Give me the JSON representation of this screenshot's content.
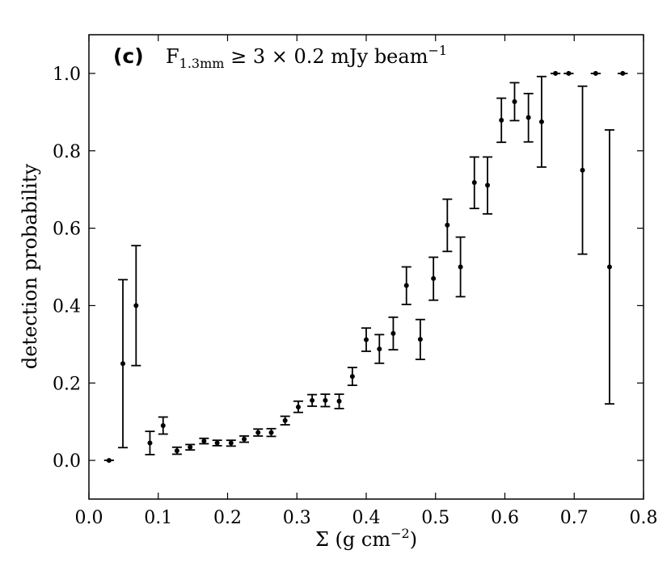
{
  "chart_data": {
    "type": "scatter",
    "annotation": {
      "panel_label": "(c)",
      "formula_main": "F",
      "formula_sub": "1.3mm",
      "formula_rest": " ≥ 3 × 0.2 mJy beam",
      "formula_sup": "−1"
    },
    "xlabel": "Σ (g cm",
    "xlabel_sup": "−2",
    "xlabel_end": ")",
    "ylabel": "detection probability",
    "xlim": [
      0.0,
      0.8
    ],
    "ylim": [
      -0.1,
      1.1
    ],
    "xticks": [
      "0.0",
      "0.1",
      "0.2",
      "0.3",
      "0.4",
      "0.5",
      "0.6",
      "0.7",
      "0.8"
    ],
    "yticks": [
      "0.0",
      "0.2",
      "0.4",
      "0.6",
      "0.8",
      "1.0"
    ],
    "grid": false,
    "legend": "none",
    "points": [
      {
        "x": 0.029,
        "y": 0.0,
        "ylow": 0.0,
        "yhigh": 0.0
      },
      {
        "x": 0.049,
        "y": 0.25,
        "ylow": 0.033,
        "yhigh": 0.467
      },
      {
        "x": 0.068,
        "y": 0.4,
        "ylow": 0.245,
        "yhigh": 0.555
      },
      {
        "x": 0.088,
        "y": 0.045,
        "ylow": 0.015,
        "yhigh": 0.075
      },
      {
        "x": 0.107,
        "y": 0.09,
        "ylow": 0.068,
        "yhigh": 0.112
      },
      {
        "x": 0.127,
        "y": 0.025,
        "ylow": 0.016,
        "yhigh": 0.034
      },
      {
        "x": 0.146,
        "y": 0.034,
        "ylow": 0.027,
        "yhigh": 0.041
      },
      {
        "x": 0.166,
        "y": 0.05,
        "ylow": 0.043,
        "yhigh": 0.057
      },
      {
        "x": 0.185,
        "y": 0.045,
        "ylow": 0.038,
        "yhigh": 0.052
      },
      {
        "x": 0.205,
        "y": 0.045,
        "ylow": 0.037,
        "yhigh": 0.052
      },
      {
        "x": 0.224,
        "y": 0.055,
        "ylow": 0.047,
        "yhigh": 0.063
      },
      {
        "x": 0.244,
        "y": 0.072,
        "ylow": 0.063,
        "yhigh": 0.081
      },
      {
        "x": 0.263,
        "y": 0.072,
        "ylow": 0.062,
        "yhigh": 0.082
      },
      {
        "x": 0.283,
        "y": 0.103,
        "ylow": 0.092,
        "yhigh": 0.114
      },
      {
        "x": 0.302,
        "y": 0.138,
        "ylow": 0.124,
        "yhigh": 0.153
      },
      {
        "x": 0.322,
        "y": 0.155,
        "ylow": 0.14,
        "yhigh": 0.17
      },
      {
        "x": 0.341,
        "y": 0.155,
        "ylow": 0.139,
        "yhigh": 0.171
      },
      {
        "x": 0.361,
        "y": 0.153,
        "ylow": 0.134,
        "yhigh": 0.171
      },
      {
        "x": 0.38,
        "y": 0.217,
        "ylow": 0.194,
        "yhigh": 0.24
      },
      {
        "x": 0.4,
        "y": 0.312,
        "ylow": 0.282,
        "yhigh": 0.342
      },
      {
        "x": 0.419,
        "y": 0.288,
        "ylow": 0.251,
        "yhigh": 0.325
      },
      {
        "x": 0.439,
        "y": 0.328,
        "ylow": 0.286,
        "yhigh": 0.37
      },
      {
        "x": 0.458,
        "y": 0.452,
        "ylow": 0.403,
        "yhigh": 0.5
      },
      {
        "x": 0.478,
        "y": 0.313,
        "ylow": 0.261,
        "yhigh": 0.364
      },
      {
        "x": 0.497,
        "y": 0.47,
        "ylow": 0.414,
        "yhigh": 0.525
      },
      {
        "x": 0.517,
        "y": 0.608,
        "ylow": 0.54,
        "yhigh": 0.675
      },
      {
        "x": 0.536,
        "y": 0.5,
        "ylow": 0.423,
        "yhigh": 0.577
      },
      {
        "x": 0.556,
        "y": 0.718,
        "ylow": 0.651,
        "yhigh": 0.784
      },
      {
        "x": 0.575,
        "y": 0.711,
        "ylow": 0.637,
        "yhigh": 0.784
      },
      {
        "x": 0.595,
        "y": 0.879,
        "ylow": 0.822,
        "yhigh": 0.936
      },
      {
        "x": 0.614,
        "y": 0.927,
        "ylow": 0.878,
        "yhigh": 0.976
      },
      {
        "x": 0.634,
        "y": 0.886,
        "ylow": 0.823,
        "yhigh": 0.948
      },
      {
        "x": 0.653,
        "y": 0.875,
        "ylow": 0.758,
        "yhigh": 0.992
      },
      {
        "x": 0.673,
        "y": 1.0,
        "ylow": 1.0,
        "yhigh": 1.0
      },
      {
        "x": 0.692,
        "y": 1.0,
        "ylow": 1.0,
        "yhigh": 1.0
      },
      {
        "x": 0.712,
        "y": 0.75,
        "ylow": 0.533,
        "yhigh": 0.967
      },
      {
        "x": 0.731,
        "y": 1.0,
        "ylow": 1.0,
        "yhigh": 1.0
      },
      {
        "x": 0.751,
        "y": 0.5,
        "ylow": 0.146,
        "yhigh": 0.854
      },
      {
        "x": 0.77,
        "y": 1.0,
        "ylow": 1.0,
        "yhigh": 1.0
      }
    ]
  }
}
